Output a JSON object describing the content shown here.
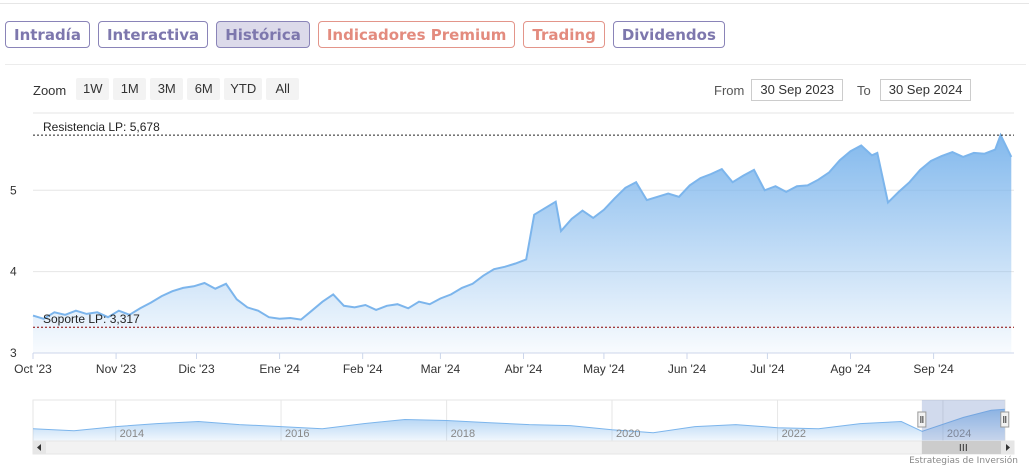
{
  "tabs": [
    {
      "label": "Intradía",
      "style": "purple"
    },
    {
      "label": "Interactiva",
      "style": "purple"
    },
    {
      "label": "Histórica",
      "style": "active"
    },
    {
      "label": "Indicadores Premium",
      "style": "red"
    },
    {
      "label": "Trading",
      "style": "red"
    },
    {
      "label": "Dividendos",
      "style": "purple"
    }
  ],
  "zoom": {
    "label": "Zoom",
    "buttons": [
      "1W",
      "1M",
      "3M",
      "6M",
      "YTD",
      "All"
    ]
  },
  "range": {
    "from_label": "From",
    "from_value": "30 Sep 2023",
    "to_label": "To",
    "to_value": "30 Sep 2024"
  },
  "credits": "Estrategias de Inversión",
  "chart_data": {
    "type": "area",
    "title": "",
    "xlabel": "",
    "ylabel": "",
    "ylim": [
      3,
      5.95
    ],
    "y_ticks": [
      3,
      4,
      5
    ],
    "x_tick_labels": [
      "Oct '23",
      "Nov '23",
      "Dic '23",
      "Ene '24",
      "Feb '24",
      "Mar '24",
      "Abr '24",
      "May '24",
      "Jun '24",
      "Jul '24",
      "Ago '24",
      "Sep '24"
    ],
    "x_tick_dates": [
      "2023-10-01",
      "2023-11-01",
      "2023-12-01",
      "2024-01-01",
      "2024-02-01",
      "2024-03-01",
      "2024-04-01",
      "2024-05-01",
      "2024-06-01",
      "2024-07-01",
      "2024-08-01",
      "2024-09-01"
    ],
    "x_range": [
      "2023-10-01",
      "2024-10-01"
    ],
    "grid": true,
    "legend": "none",
    "colors": {
      "line": "#7cb5ec",
      "fill_top": "#7cb5ec",
      "reference": "#222222",
      "soporte_line": "#8b0000"
    },
    "reference_lines": [
      {
        "label": "Resistencia LP: 5,678",
        "value": 5.678
      },
      {
        "label": "Soporte LP: 3,317",
        "value": 3.317
      }
    ],
    "series": [
      {
        "name": "",
        "points": [
          [
            "2023-10-01",
            3.46
          ],
          [
            "2023-10-05",
            3.42
          ],
          [
            "2023-10-09",
            3.5
          ],
          [
            "2023-10-13",
            3.47
          ],
          [
            "2023-10-17",
            3.52
          ],
          [
            "2023-10-21",
            3.48
          ],
          [
            "2023-10-25",
            3.5
          ],
          [
            "2023-10-29",
            3.44
          ],
          [
            "2023-11-02",
            3.52
          ],
          [
            "2023-11-06",
            3.47
          ],
          [
            "2023-11-10",
            3.55
          ],
          [
            "2023-11-14",
            3.62
          ],
          [
            "2023-11-18",
            3.7
          ],
          [
            "2023-11-22",
            3.76
          ],
          [
            "2023-11-26",
            3.8
          ],
          [
            "2023-11-30",
            3.82
          ],
          [
            "2023-12-04",
            3.86
          ],
          [
            "2023-12-08",
            3.79
          ],
          [
            "2023-12-12",
            3.85
          ],
          [
            "2023-12-16",
            3.66
          ],
          [
            "2023-12-20",
            3.56
          ],
          [
            "2023-12-24",
            3.52
          ],
          [
            "2023-12-28",
            3.44
          ],
          [
            "2024-01-01",
            3.42
          ],
          [
            "2024-01-05",
            3.43
          ],
          [
            "2024-01-09",
            3.41
          ],
          [
            "2024-01-13",
            3.52
          ],
          [
            "2024-01-17",
            3.63
          ],
          [
            "2024-01-21",
            3.72
          ],
          [
            "2024-01-25",
            3.58
          ],
          [
            "2024-01-29",
            3.56
          ],
          [
            "2024-02-02",
            3.59
          ],
          [
            "2024-02-06",
            3.53
          ],
          [
            "2024-02-10",
            3.58
          ],
          [
            "2024-02-14",
            3.6
          ],
          [
            "2024-02-18",
            3.55
          ],
          [
            "2024-02-22",
            3.63
          ],
          [
            "2024-02-26",
            3.6
          ],
          [
            "2024-03-01",
            3.67
          ],
          [
            "2024-03-05",
            3.72
          ],
          [
            "2024-03-09",
            3.8
          ],
          [
            "2024-03-13",
            3.85
          ],
          [
            "2024-03-17",
            3.95
          ],
          [
            "2024-03-21",
            4.03
          ],
          [
            "2024-03-25",
            4.06
          ],
          [
            "2024-03-29",
            4.1
          ],
          [
            "2024-04-02",
            4.15
          ],
          [
            "2024-04-05",
            4.7
          ],
          [
            "2024-04-09",
            4.78
          ],
          [
            "2024-04-13",
            4.86
          ],
          [
            "2024-04-15",
            4.5
          ],
          [
            "2024-04-19",
            4.65
          ],
          [
            "2024-04-23",
            4.75
          ],
          [
            "2024-04-27",
            4.66
          ],
          [
            "2024-05-01",
            4.76
          ],
          [
            "2024-05-05",
            4.9
          ],
          [
            "2024-05-09",
            5.03
          ],
          [
            "2024-05-13",
            5.1
          ],
          [
            "2024-05-17",
            4.88
          ],
          [
            "2024-05-21",
            4.92
          ],
          [
            "2024-05-25",
            4.96
          ],
          [
            "2024-05-29",
            4.92
          ],
          [
            "2024-06-02",
            5.06
          ],
          [
            "2024-06-06",
            5.15
          ],
          [
            "2024-06-10",
            5.2
          ],
          [
            "2024-06-14",
            5.26
          ],
          [
            "2024-06-18",
            5.1
          ],
          [
            "2024-06-22",
            5.18
          ],
          [
            "2024-06-26",
            5.25
          ],
          [
            "2024-06-30",
            5.0
          ],
          [
            "2024-07-04",
            5.05
          ],
          [
            "2024-07-08",
            4.98
          ],
          [
            "2024-07-12",
            5.05
          ],
          [
            "2024-07-16",
            5.06
          ],
          [
            "2024-07-20",
            5.13
          ],
          [
            "2024-07-24",
            5.22
          ],
          [
            "2024-07-28",
            5.37
          ],
          [
            "2024-08-01",
            5.48
          ],
          [
            "2024-08-05",
            5.55
          ],
          [
            "2024-08-09",
            5.43
          ],
          [
            "2024-08-11",
            5.46
          ],
          [
            "2024-08-15",
            4.85
          ],
          [
            "2024-08-19",
            4.98
          ],
          [
            "2024-08-23",
            5.1
          ],
          [
            "2024-08-27",
            5.25
          ],
          [
            "2024-08-31",
            5.36
          ],
          [
            "2024-09-04",
            5.42
          ],
          [
            "2024-09-08",
            5.47
          ],
          [
            "2024-09-12",
            5.41
          ],
          [
            "2024-09-16",
            5.46
          ],
          [
            "2024-09-20",
            5.45
          ],
          [
            "2024-09-24",
            5.5
          ],
          [
            "2024-09-26",
            5.68
          ],
          [
            "2024-09-30",
            5.41
          ]
        ]
      }
    ],
    "navigator": {
      "year_labels": [
        "2014",
        "2016",
        "2018",
        "2020",
        "2022",
        "2024"
      ],
      "year_label_dates": [
        "2014-01-01",
        "2016-01-01",
        "2018-01-01",
        "2020-01-01",
        "2022-01-01",
        "2024-01-01"
      ],
      "x_range": [
        "2013-01-01",
        "2024-10-01"
      ],
      "selected_range": [
        "2023-09-30",
        "2024-09-30"
      ],
      "series": [
        [
          "2013-01-01",
          3.7
        ],
        [
          "2013-07-01",
          3.5
        ],
        [
          "2014-01-01",
          3.9
        ],
        [
          "2014-07-01",
          4.2
        ],
        [
          "2015-01-01",
          4.4
        ],
        [
          "2015-07-01",
          4.1
        ],
        [
          "2016-01-01",
          3.9
        ],
        [
          "2016-07-01",
          3.7
        ],
        [
          "2017-01-01",
          4.2
        ],
        [
          "2017-07-01",
          4.6
        ],
        [
          "2018-01-01",
          4.5
        ],
        [
          "2018-07-01",
          4.3
        ],
        [
          "2019-01-01",
          4.1
        ],
        [
          "2019-07-01",
          4.0
        ],
        [
          "2020-01-01",
          3.6
        ],
        [
          "2020-07-01",
          3.3
        ],
        [
          "2021-01-01",
          3.9
        ],
        [
          "2021-07-01",
          4.1
        ],
        [
          "2022-01-01",
          3.8
        ],
        [
          "2022-07-01",
          3.7
        ],
        [
          "2023-01-01",
          4.2
        ],
        [
          "2023-07-01",
          4.4
        ],
        [
          "2023-10-01",
          3.45
        ],
        [
          "2024-04-01",
          4.8
        ],
        [
          "2024-08-01",
          5.5
        ],
        [
          "2024-09-30",
          5.6
        ]
      ]
    }
  }
}
